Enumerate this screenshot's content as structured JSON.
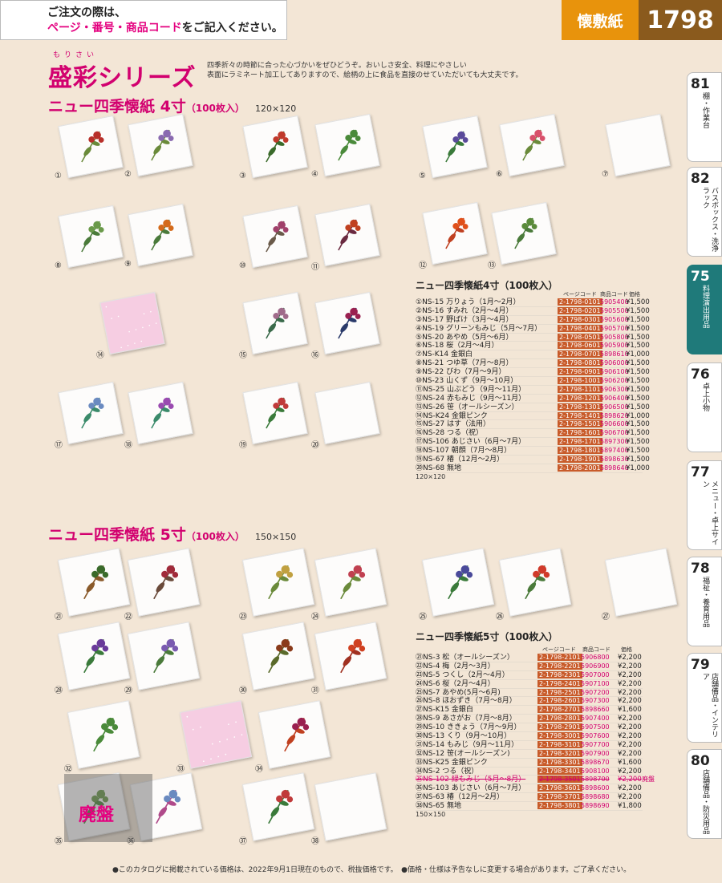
{
  "notice": {
    "line1": "ご注文の際は、",
    "pre": "ページ・番号・商品コード",
    "post": "をご記入ください。"
  },
  "header": {
    "category": "懐敷紙",
    "page_number": "1798"
  },
  "series": {
    "ruby": "もりさい",
    "title": "盛彩シリーズ",
    "desc1": "四季折々の時節に合った心づかいをぜひどうぞ。おいしさ安全、料理にやさしい",
    "desc2": "表面にラミネート加工してありますので、絵柄の上に食品を直接のせていただいても大丈夫です。"
  },
  "section4": {
    "title": "ニュー四季懐紙 4寸",
    "qty": "（100枚入）",
    "size": "120×120"
  },
  "section5": {
    "title": "ニュー四季懐紙 5寸",
    "qty": "（100枚入）",
    "size": "150×150"
  },
  "tiles": [
    "①",
    "②",
    "③",
    "④",
    "⑤",
    "⑥",
    "⑦",
    "⑧",
    "⑨",
    "⑩",
    "⑪",
    "⑫",
    "⑬",
    "⑭",
    "⑮",
    "⑯",
    "⑰",
    "⑱",
    "⑲",
    "⑳",
    "㉑",
    "㉒",
    "㉓",
    "㉔",
    "㉕",
    "㉖",
    "㉗",
    "㉘",
    "㉙",
    "㉚",
    "㉛",
    "㉜",
    "㉝",
    "㉞",
    "㉟",
    "㊱",
    "㊲",
    "㊳"
  ],
  "table4": {
    "title": "ニュー四季懐紙4寸（100枚入）",
    "col_page": "ページコード",
    "col_code": "商品コード",
    "col_price": "価格",
    "footnote": "120×120",
    "rows": [
      [
        "①NS-15 万りょう（1月～2月）",
        "2-1798-0101",
        "5905400",
        "¥1,500"
      ],
      [
        "②NS-16 すみれ（2月～4月）",
        "2-1798-0201",
        "5905500",
        "¥1,500"
      ],
      [
        "③NS-17 野ばけ（3月～4月）",
        "2-1798-0301",
        "5905600",
        "¥1,500"
      ],
      [
        "④NS-19 グリーンもみじ（5月～7月）",
        "2-1798-0401",
        "5905700",
        "¥1,500"
      ],
      [
        "⑤NS-20 あやめ（5月～6月）",
        "2-1798-0501",
        "5905800",
        "¥1,500"
      ],
      [
        "⑥NS-18 桜（2月～4月）",
        "2-1798-0601",
        "5905900",
        "¥1,500"
      ],
      [
        "⑦NS-K14 金銀白",
        "2-1798-0701",
        "5898610",
        "¥1,000"
      ],
      [
        "⑧NS-21 つゆ草（7月～8月）",
        "2-1798-0801",
        "5906000",
        "¥1,500"
      ],
      [
        "⑨NS-22 びわ（7月～9月）",
        "2-1798-0901",
        "5906100",
        "¥1,500"
      ],
      [
        "⑩NS-23 山くず（9月～10月）",
        "2-1798-1001",
        "5906200",
        "¥1,500"
      ],
      [
        "⑪NS-25 山ぶどう（9月～11月）",
        "2-1798-1101",
        "5906300",
        "¥1,500"
      ],
      [
        "⑫NS-24 赤もみじ（9月～11月）",
        "2-1798-1201",
        "5906400",
        "¥1,500"
      ],
      [
        "⑬NS-26 笹（オールシーズン）",
        "2-1798-1301",
        "5906500",
        "¥1,500"
      ],
      [
        "⑭NS-K24 金銀ピンク",
        "2-1798-1401",
        "5898620",
        "¥1,000"
      ],
      [
        "⑮NS-27 はす（法用）",
        "2-1798-1501",
        "5906600",
        "¥1,500"
      ],
      [
        "⑯NS-28 つる（祝）",
        "2-1798-1601",
        "5906700",
        "¥1,500"
      ],
      [
        "⑰NS-106 あじさい（6月～7月）",
        "2-1798-1701",
        "5897300",
        "¥1,500"
      ],
      [
        "⑱NS-107 朝顔（7月～8月）",
        "2-1798-1801",
        "5897400",
        "¥1,500"
      ],
      [
        "⑲NS-67 椿（12月～2月）",
        "2-1798-1901",
        "5898630",
        "¥1,500"
      ],
      [
        "⑳NS-68 無地",
        "2-1798-2001",
        "5898640",
        "¥1,000"
      ]
    ]
  },
  "table5": {
    "title": "ニュー四季懐紙5寸（100枚入）",
    "col_page": "ページコード",
    "col_code": "商品コード",
    "col_price": "価格",
    "footnote": "150×150",
    "obsolete": "廃盤",
    "rows": [
      [
        "㉑NS-3 松（オールシーズン）",
        "2-1798-2101",
        "5906800",
        "¥2,200"
      ],
      [
        "㉒NS-4 梅（2月～3月）",
        "2-1798-2201",
        "5906900",
        "¥2,200"
      ],
      [
        "㉓NS-5 つくし（2月～4月）",
        "2-1798-2301",
        "5907000",
        "¥2,200"
      ],
      [
        "㉔NS-6 桜（2月～4月）",
        "2-1798-2401",
        "5907100",
        "¥2,200"
      ],
      [
        "㉕NS-7 あやめ(5月～6月)",
        "2-1798-2501",
        "5907200",
        "¥2,200"
      ],
      [
        "㉖NS-8 ほおずき（7月～8月）",
        "2-1798-2601",
        "5907300",
        "¥2,200"
      ],
      [
        "㉗NS-K15 金銀白",
        "2-1798-2701",
        "5898660",
        "¥1,600"
      ],
      [
        "㉘NS-9 あさがお（7月～8月）",
        "2-1798-2801",
        "5907400",
        "¥2,200"
      ],
      [
        "㉙NS-10 ききょう（7月～9月）",
        "2-1798-2901",
        "5907500",
        "¥2,200"
      ],
      [
        "㉚NS-13 くり（9月～10月）",
        "2-1798-3001",
        "5907600",
        "¥2,200"
      ],
      [
        "㉛NS-14 もみじ（9月～11月）",
        "2-1798-3101",
        "5907700",
        "¥2,200"
      ],
      [
        "㉜NS-12 笹(オールシーズン)",
        "2-1798-3201",
        "5907900",
        "¥2,200"
      ],
      [
        "㉝NS-K25 金銀ピンク",
        "2-1798-3301",
        "5898670",
        "¥1,600"
      ],
      [
        "㉞NS-2 つる（祝）",
        "2-1798-3401",
        "5908100",
        "¥2,200"
      ],
      [
        "㉟NS-102 緑もみじ（5月～8月）",
        "2-1798-3501",
        "5898700",
        "¥2,200"
      ],
      [
        "㊱NS-103 あじさい（6月～7月）",
        "2-1798-3601",
        "5898600",
        "¥2,200"
      ],
      [
        "㊲NS-63 椿（12月～2月）",
        "2-1798-3701",
        "5898680",
        "¥2,200"
      ],
      [
        "㊳NS-65 無地",
        "2-1798-3801",
        "5898690",
        "¥1,800"
      ]
    ]
  },
  "disc_label": "廃盤",
  "sidebar": [
    {
      "num": "81",
      "label": "棚・作業台"
    },
    {
      "num": "82",
      "label": "バスボックス・洗浄ラック"
    },
    {
      "num": "75",
      "label": "料理演出用品"
    },
    {
      "num": "76",
      "label": "卓上小物"
    },
    {
      "num": "77",
      "label": "メニュー・卓上サイン"
    },
    {
      "num": "78",
      "label": "福祉・養育用品"
    },
    {
      "num": "79",
      "label": "店舗備品・インテリア"
    },
    {
      "num": "80",
      "label": "店舗備品・防災用品"
    }
  ],
  "footer": "●このカタログに掲載されている価格は、2022年9月1日現在のもので、税抜価格です。　●価格・仕様は予告なしに変更する場合があります。ご了承ください。"
}
